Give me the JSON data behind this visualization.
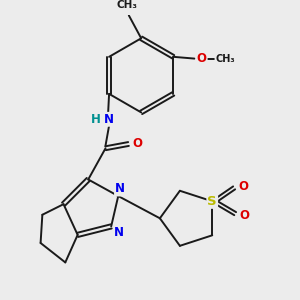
{
  "bg_color": "#ececec",
  "bond_color": "#1a1a1a",
  "bond_width": 1.4,
  "atom_colors": {
    "N": "#0000ee",
    "O": "#dd0000",
    "S": "#bbbb00",
    "H": "#009090",
    "C": "#1a1a1a"
  },
  "font_size_atom": 8.5
}
